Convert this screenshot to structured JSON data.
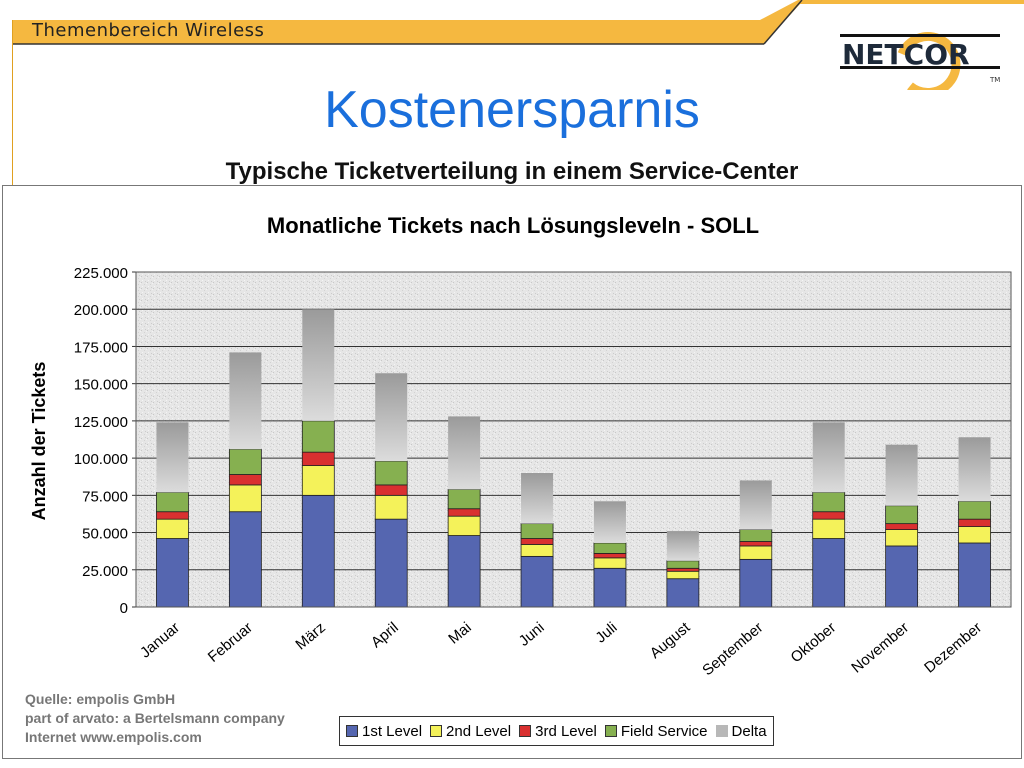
{
  "header": {
    "section": "Themenbereich Wireless",
    "logo_text": "NETCOR",
    "logo_tm": "TM"
  },
  "slide": {
    "title": "Kostenersparnis",
    "subtitle": "Typische Ticketverteilung in einem Service-Center"
  },
  "source": {
    "line1": "Quelle: empolis GmbH",
    "line2": "part of arvato: a Bertelsmann company",
    "line3": "Internet www.empolis.com"
  },
  "colors": {
    "accent": "#f5b840",
    "title_blue": "#1a6fdc"
  },
  "chart_data": {
    "type": "bar",
    "stacked": true,
    "title": "Monatliche Tickets nach Lösungsleveln - SOLL",
    "xlabel": "",
    "ylabel": "Anzahl der Tickets",
    "ylim": [
      0,
      225000
    ],
    "yticks": [
      0,
      25000,
      50000,
      75000,
      100000,
      125000,
      150000,
      175000,
      200000,
      225000
    ],
    "ytick_labels": [
      "0",
      "25.000",
      "50.000",
      "75.000",
      "100.000",
      "125.000",
      "150.000",
      "175.000",
      "200.000",
      "225.000"
    ],
    "grid": true,
    "legend_position": "bottom",
    "categories": [
      "Januar",
      "Februar",
      "März",
      "April",
      "Mai",
      "Juni",
      "Juli",
      "August",
      "September",
      "Oktober",
      "November",
      "Dezember"
    ],
    "series": [
      {
        "name": "1st Level",
        "color": "#5566b0",
        "values": [
          46000,
          64000,
          75000,
          59000,
          48000,
          34000,
          26000,
          19000,
          32000,
          46000,
          41000,
          43000
        ]
      },
      {
        "name": "2nd Level",
        "color": "#f4f25a",
        "values": [
          13000,
          18000,
          20000,
          16000,
          13000,
          8000,
          7000,
          5000,
          9000,
          13000,
          11000,
          11000
        ]
      },
      {
        "name": "3rd Level",
        "color": "#d93030",
        "values": [
          5000,
          7000,
          9000,
          7000,
          5000,
          4000,
          3000,
          2000,
          3000,
          5000,
          4000,
          5000
        ]
      },
      {
        "name": "Field Service",
        "color": "#86b050",
        "values": [
          13000,
          17000,
          21000,
          16000,
          13000,
          10000,
          7000,
          5000,
          8000,
          13000,
          12000,
          12000
        ]
      },
      {
        "name": "Delta",
        "color": "#b8b8b8",
        "values": [
          47000,
          65000,
          75000,
          59000,
          49000,
          34000,
          28000,
          20000,
          33000,
          47000,
          41000,
          43000
        ]
      }
    ]
  }
}
